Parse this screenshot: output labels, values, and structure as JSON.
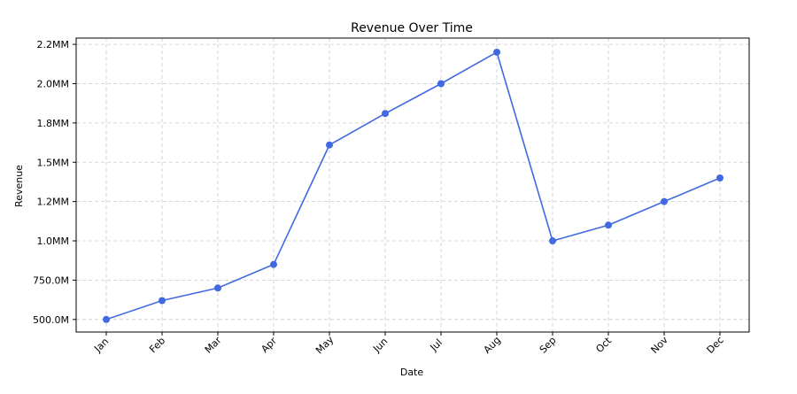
{
  "chart_data": {
    "type": "line",
    "title": "Revenue Over Time",
    "xlabel": "Date",
    "ylabel": "Revenue",
    "categories": [
      "Jan",
      "Feb",
      "Mar",
      "Apr",
      "May",
      "Jun",
      "Jul",
      "Aug",
      "Sep",
      "Oct",
      "Nov",
      "Dec"
    ],
    "series": [
      {
        "values": [
          500000,
          620000,
          700000,
          850000,
          1610000,
          1810000,
          2000000,
          2200000,
          1000000,
          1100000,
          1250000,
          1400000
        ],
        "color": "#4169E1",
        "marker": "circle"
      }
    ],
    "yticks": [
      500000,
      750000,
      1000000,
      1250000,
      1500000,
      1750000,
      2000000,
      2250000
    ],
    "ytick_labels": [
      "500.0M",
      "750.0M",
      "1.0MM",
      "1.2MM",
      "1.5MM",
      "1.8MM",
      "2.0MM",
      "2.2MM"
    ],
    "ylim": [
      420000,
      2290000
    ],
    "grid": true,
    "grid_style": "dashed"
  }
}
